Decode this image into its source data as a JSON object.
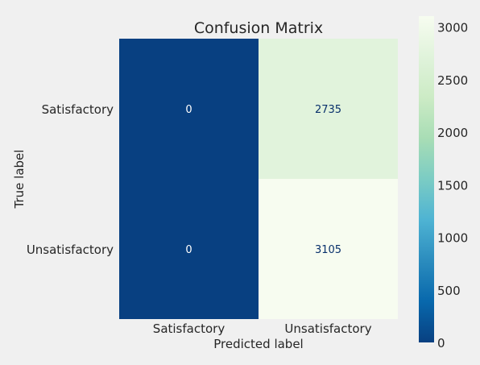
{
  "chart_data": {
    "type": "heatmap",
    "title": "Confusion Matrix",
    "xlabel": "Predicted label",
    "ylabel": "True label",
    "x_categories": [
      "Satisfactory",
      "Unsatisfactory"
    ],
    "y_categories": [
      "Satisfactory",
      "Unsatisfactory"
    ],
    "values": [
      [
        0,
        2735
      ],
      [
        0,
        3105
      ]
    ],
    "colormap": "GnBu_r",
    "colorbar": {
      "min": 0,
      "max": 3105,
      "ticks": [
        0,
        500,
        1000,
        1500,
        2000,
        2500,
        3000
      ],
      "tick_labels": [
        "0",
        "500",
        "1000",
        "1500",
        "2000",
        "2500",
        "3000"
      ]
    },
    "grid": false
  },
  "colors": {
    "background": "#f0f0f0",
    "dark_text": "#ffffff",
    "light_text": "#08306b"
  }
}
